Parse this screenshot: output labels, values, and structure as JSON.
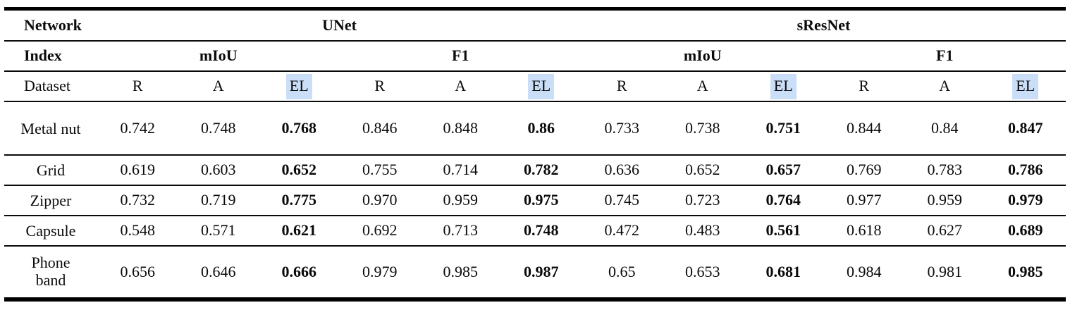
{
  "table": {
    "highlight_color": "#cbdef7",
    "header": {
      "network_label": "Network",
      "index_label": "Index",
      "dataset_label": "Dataset",
      "networks": [
        "UNet",
        "sResNet"
      ],
      "indices": [
        "mIoU",
        "F1",
        "mIoU",
        "F1"
      ],
      "subcols": [
        "R",
        "A",
        "EL",
        "R",
        "A",
        "EL",
        "R",
        "A",
        "EL",
        "R",
        "A",
        "EL"
      ]
    },
    "rows": [
      {
        "name": "Metal nut",
        "v": [
          "0.742",
          "0.748",
          "0.768",
          "0.846",
          "0.848",
          "0.86",
          "0.733",
          "0.738",
          "0.751",
          "0.844",
          "0.84",
          "0.847"
        ]
      },
      {
        "name": "Grid",
        "v": [
          "0.619",
          "0.603",
          "0.652",
          "0.755",
          "0.714",
          "0.782",
          "0.636",
          "0.652",
          "0.657",
          "0.769",
          "0.783",
          "0.786"
        ]
      },
      {
        "name": "Zipper",
        "v": [
          "0.732",
          "0.719",
          "0.775",
          "0.970",
          "0.959",
          "0.975",
          "0.745",
          "0.723",
          "0.764",
          "0.977",
          "0.959",
          "0.979"
        ]
      },
      {
        "name": "Capsule",
        "v": [
          "0.548",
          "0.571",
          "0.621",
          "0.692",
          "0.713",
          "0.748",
          "0.472",
          "0.483",
          "0.561",
          "0.618",
          "0.627",
          "0.689"
        ]
      },
      {
        "name": "Phone band",
        "v": [
          "0.656",
          "0.646",
          "0.666",
          "0.979",
          "0.985",
          "0.987",
          "0.65",
          "0.653",
          "0.681",
          "0.984",
          "0.981",
          "0.985"
        ]
      }
    ]
  }
}
